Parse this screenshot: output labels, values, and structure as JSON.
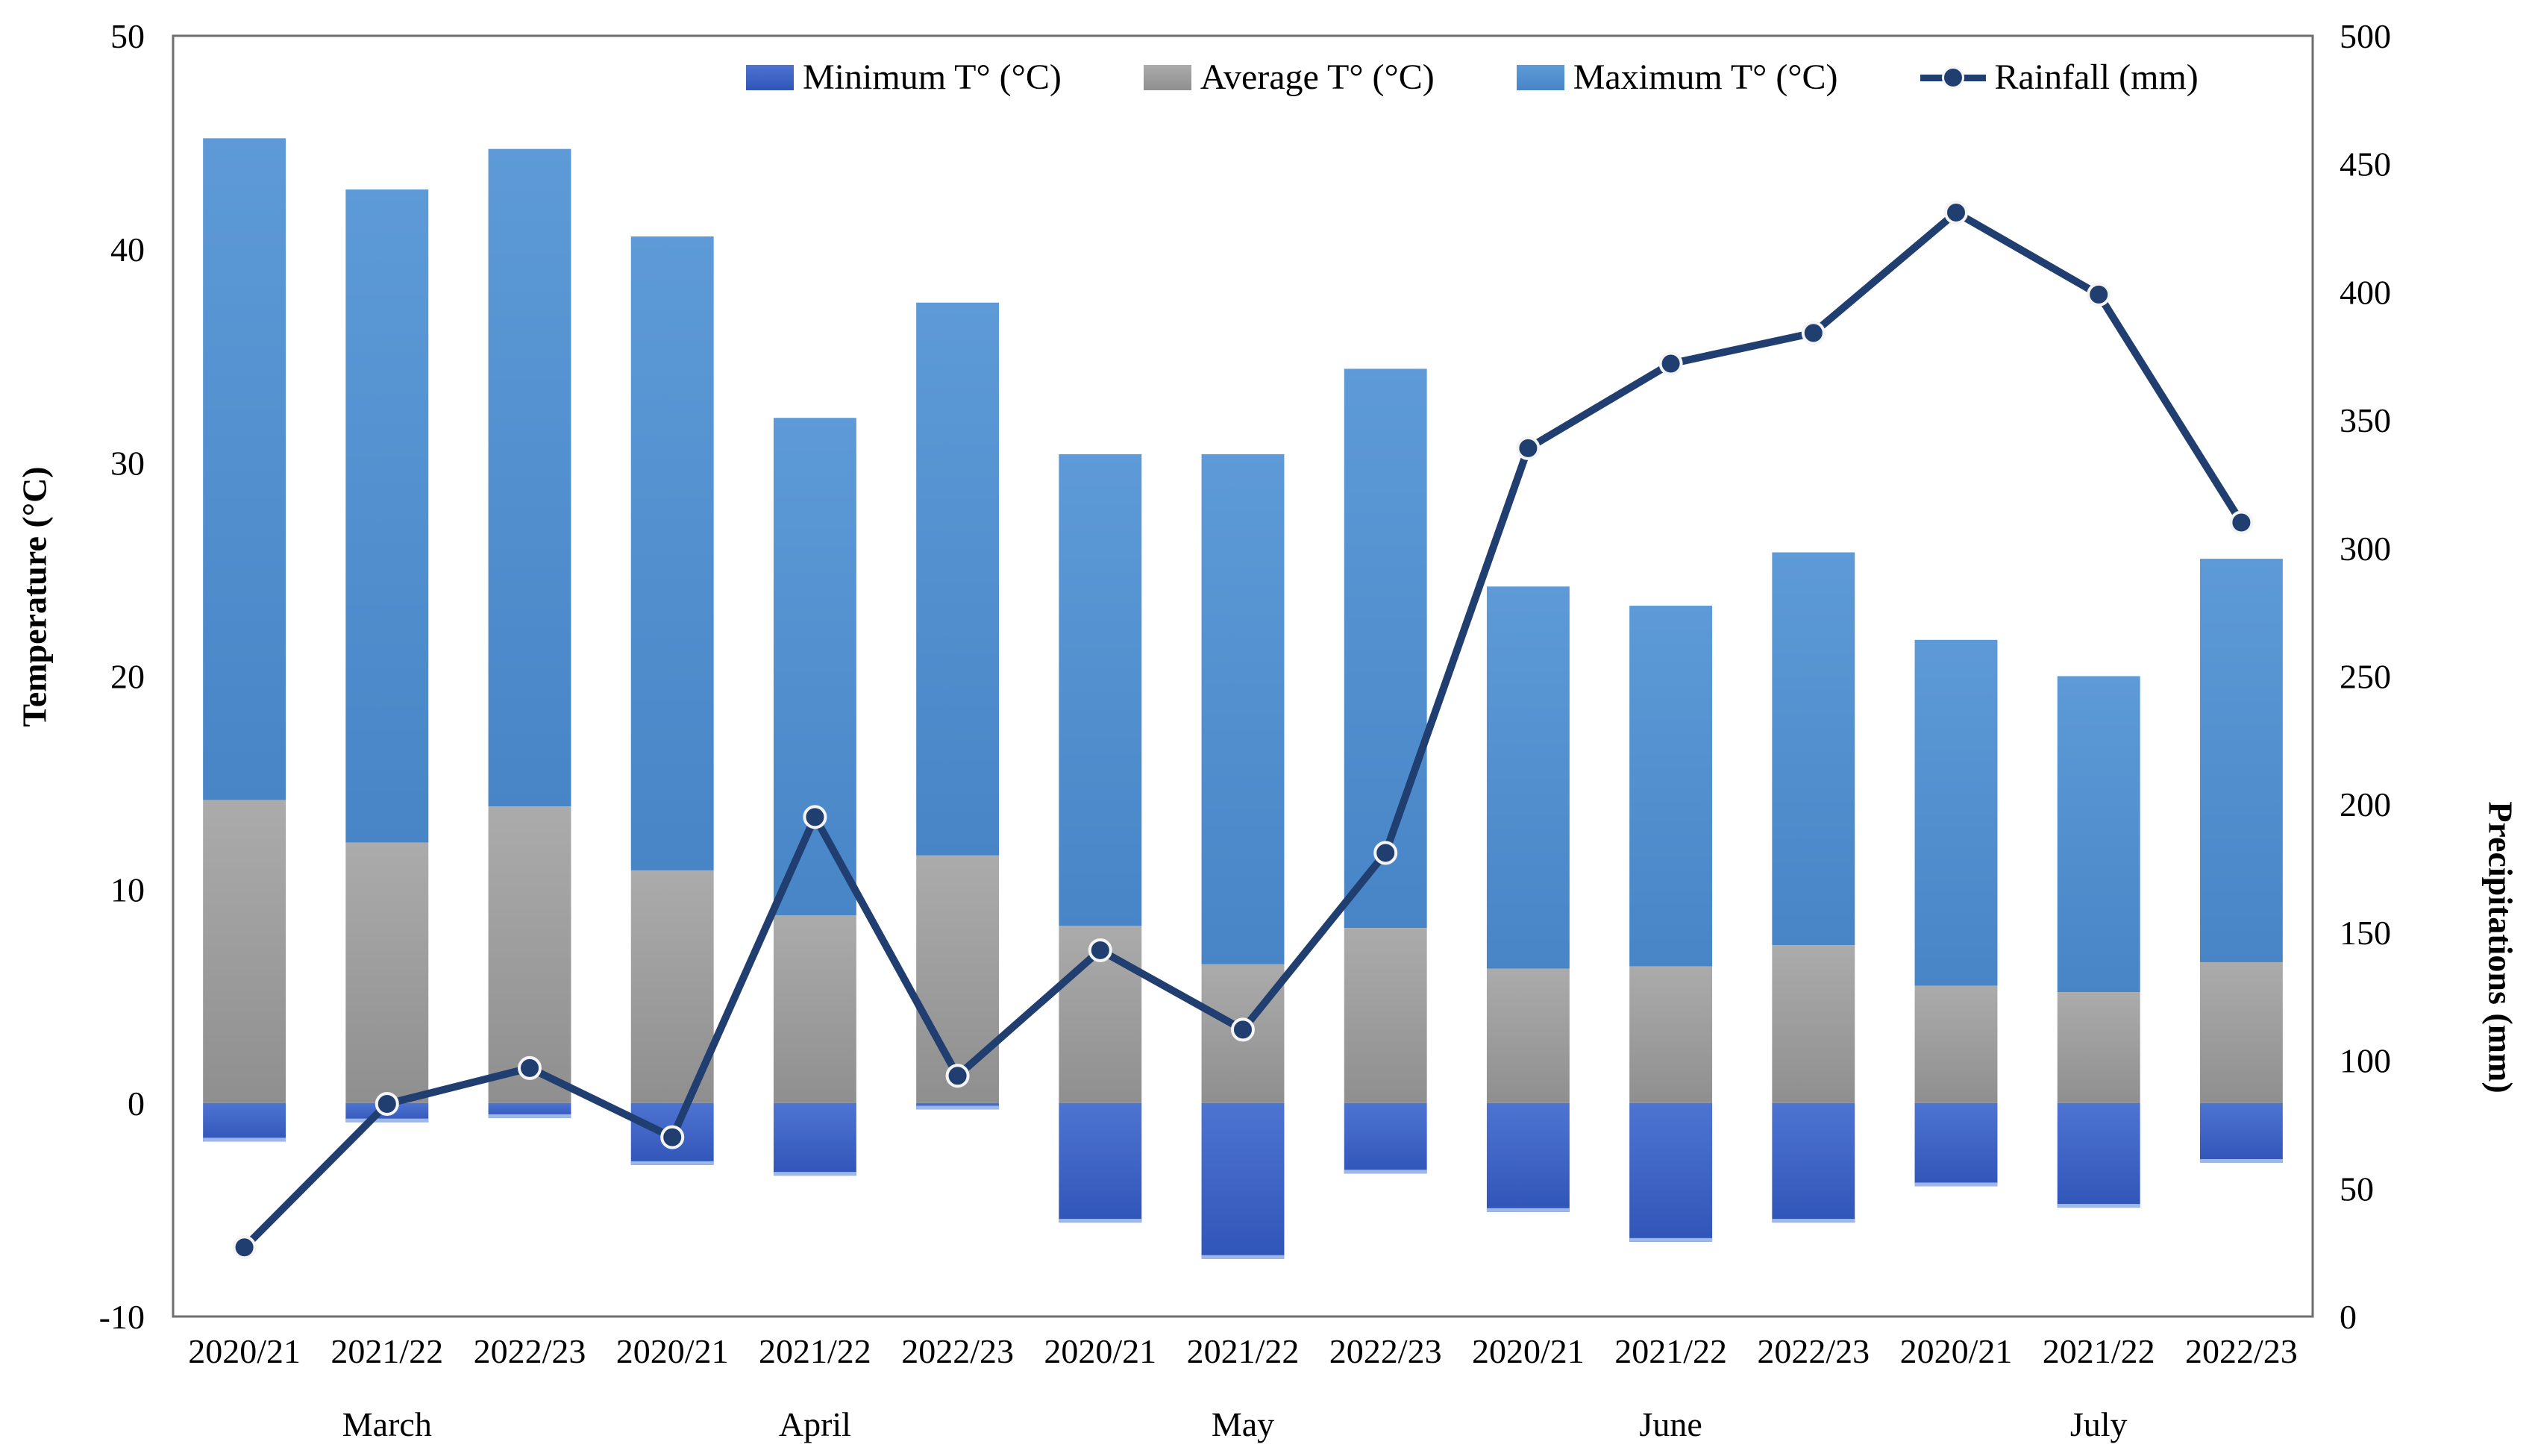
{
  "chart_data": {
    "type": "bar",
    "subtype": "stacked-bars-with-line-overlay",
    "title": "",
    "xlabel": "",
    "ylabel_left": "Temperature (°C)",
    "ylabel_right": "Precipitations (mm)",
    "grid": "off",
    "legend_position": "top-center",
    "y_left": {
      "min": -10,
      "max": 50,
      "step": 10,
      "ticks": [
        "50",
        "40",
        "30",
        "20",
        "10",
        "0",
        "-10"
      ]
    },
    "y_right": {
      "min": 0,
      "max": 500,
      "step": 50,
      "ticks": [
        "500",
        "450",
        "400",
        "350",
        "300",
        "250",
        "200",
        "150",
        "100",
        "50",
        "0"
      ]
    },
    "months": [
      "March",
      "April",
      "May",
      "June",
      "July"
    ],
    "categories": [
      "2020/21",
      "2021/22",
      "2022/23",
      "2020/21",
      "2021/22",
      "2022/23",
      "2020/21",
      "2021/22",
      "2022/23",
      "2020/21",
      "2021/22",
      "2022/23",
      "2020/21",
      "2021/22",
      "2022/23"
    ],
    "bar_note": "Minimum drawn from 0 down to value; Average drawn 0 to value; Maximum drawn from Average up to value; Rainfall on right axis",
    "legend": [
      {
        "label": "Minimum T° (°C)",
        "icon": "bar-swatch",
        "color": "#3E64C6"
      },
      {
        "label": "Average T° (°C)",
        "icon": "bar-swatch",
        "color": "#A6A6A6"
      },
      {
        "label": "Maximum T° (°C)",
        "icon": "bar-swatch",
        "color": "#5B9BD5"
      },
      {
        "label": "Rainfall (mm)",
        "icon": "line-marker",
        "color": "#203E6F"
      }
    ],
    "series": [
      {
        "name": "Minimum T° (°C)",
        "type": "bar",
        "axis": "left",
        "values": [
          -1.8,
          -0.9,
          -0.7,
          -2.9,
          -3.4,
          -0.3,
          -5.6,
          -7.3,
          -3.3,
          -5.1,
          -6.5,
          -5.6,
          -3.9,
          -4.9,
          -2.8
        ]
      },
      {
        "name": "Average T° (°C)",
        "type": "bar",
        "axis": "left",
        "values": [
          14.2,
          12.2,
          13.9,
          10.9,
          8.8,
          11.6,
          8.3,
          6.5,
          8.2,
          6.3,
          6.4,
          7.4,
          5.5,
          5.2,
          6.6
        ]
      },
      {
        "name": "Maximum T° (°C)",
        "type": "bar",
        "axis": "left",
        "values": [
          45.2,
          42.8,
          44.7,
          40.6,
          32.1,
          37.5,
          30.4,
          30.4,
          34.4,
          24.2,
          23.3,
          25.8,
          21.7,
          20.0,
          25.5
        ]
      },
      {
        "name": "Rainfall (mm)",
        "type": "line",
        "axis": "right",
        "values": [
          27,
          83,
          97,
          70,
          195,
          94,
          143,
          112,
          181,
          339,
          372,
          384,
          431,
          399,
          310
        ]
      }
    ],
    "colors": {
      "bar_min": "#3E64C6",
      "bar_avg": "#A6A6A6",
      "bar_max": "#5B9BD5",
      "line": "#203E6F",
      "plot_border": "#6e6e6e"
    }
  }
}
